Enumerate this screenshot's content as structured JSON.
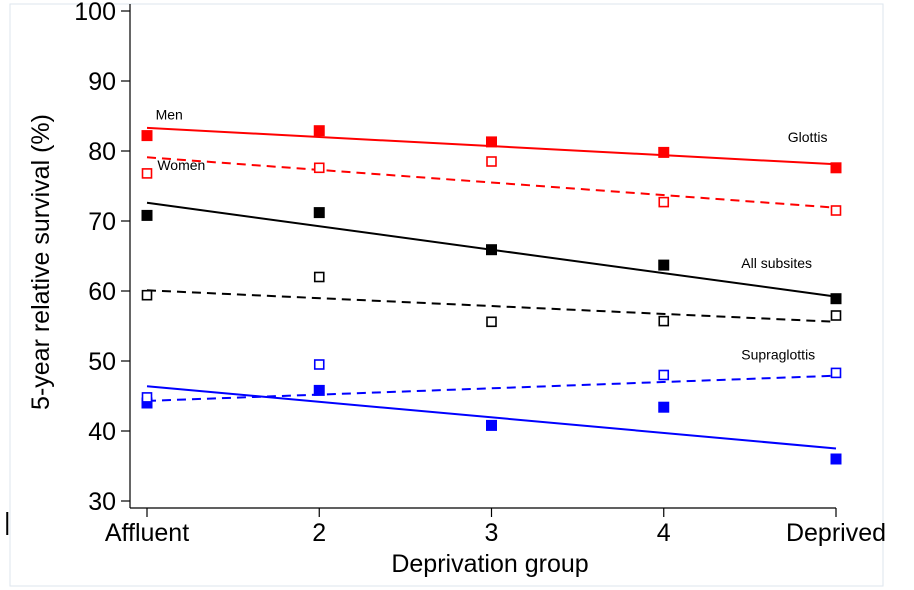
{
  "chart_data": {
    "type": "scatter",
    "xlabel": "Deprivation group",
    "ylabel": "5-year relative survival (%)",
    "categories": [
      "Affluent",
      "2",
      "3",
      "4",
      "Deprived"
    ],
    "x": [
      1,
      2,
      3,
      4,
      5
    ],
    "ylim": [
      29,
      101
    ],
    "yticks": [
      30,
      40,
      50,
      60,
      70,
      80,
      90,
      100
    ],
    "grid": false,
    "legend": "none",
    "series": [
      {
        "group": "Glottis",
        "sex": "Men",
        "color": "#ff0000",
        "marker": "filled-square",
        "line": "solid",
        "values": [
          82.2,
          82.9,
          81.3,
          79.8,
          77.6
        ],
        "fit": [
          83.3,
          78.1
        ]
      },
      {
        "group": "Glottis",
        "sex": "Women",
        "color": "#ff0000",
        "marker": "open-square",
        "line": "dashed",
        "values": [
          76.8,
          77.6,
          78.5,
          72.7,
          71.5
        ],
        "fit": [
          79.1,
          71.9
        ]
      },
      {
        "group": "All subsites",
        "sex": "Men",
        "color": "#000000",
        "marker": "filled-square",
        "line": "solid",
        "values": [
          70.8,
          71.2,
          65.9,
          63.7,
          58.9
        ],
        "fit": [
          72.6,
          59.2
        ]
      },
      {
        "group": "All subsites",
        "sex": "Women",
        "color": "#000000",
        "marker": "open-square",
        "line": "dashed",
        "values": [
          59.4,
          62.0,
          55.6,
          55.7,
          56.5
        ],
        "fit": [
          60.1,
          55.6
        ]
      },
      {
        "group": "Supraglottis",
        "sex": "Men",
        "color": "#0000ff",
        "marker": "filled-square",
        "line": "solid",
        "values": [
          44.0,
          45.8,
          40.8,
          43.4,
          36.0
        ],
        "fit": [
          46.4,
          37.5
        ]
      },
      {
        "group": "Supraglottis",
        "sex": "Women",
        "color": "#0000ff",
        "marker": "open-square",
        "line": "dashed",
        "values": [
          44.8,
          49.5,
          null,
          48.0,
          48.3
        ],
        "fit": [
          44.3,
          47.9
        ]
      }
    ],
    "annotations": [
      {
        "text": "Men",
        "x": 1.05,
        "y": 84.5
      },
      {
        "text": "Women",
        "x": 1.06,
        "y": 77.3
      },
      {
        "text": "Glottis",
        "x": 4.72,
        "y": 81.3
      },
      {
        "text": "All subsites",
        "x": 4.45,
        "y": 63.3
      },
      {
        "text": "Supraglottis",
        "x": 4.45,
        "y": 50.2
      }
    ]
  }
}
